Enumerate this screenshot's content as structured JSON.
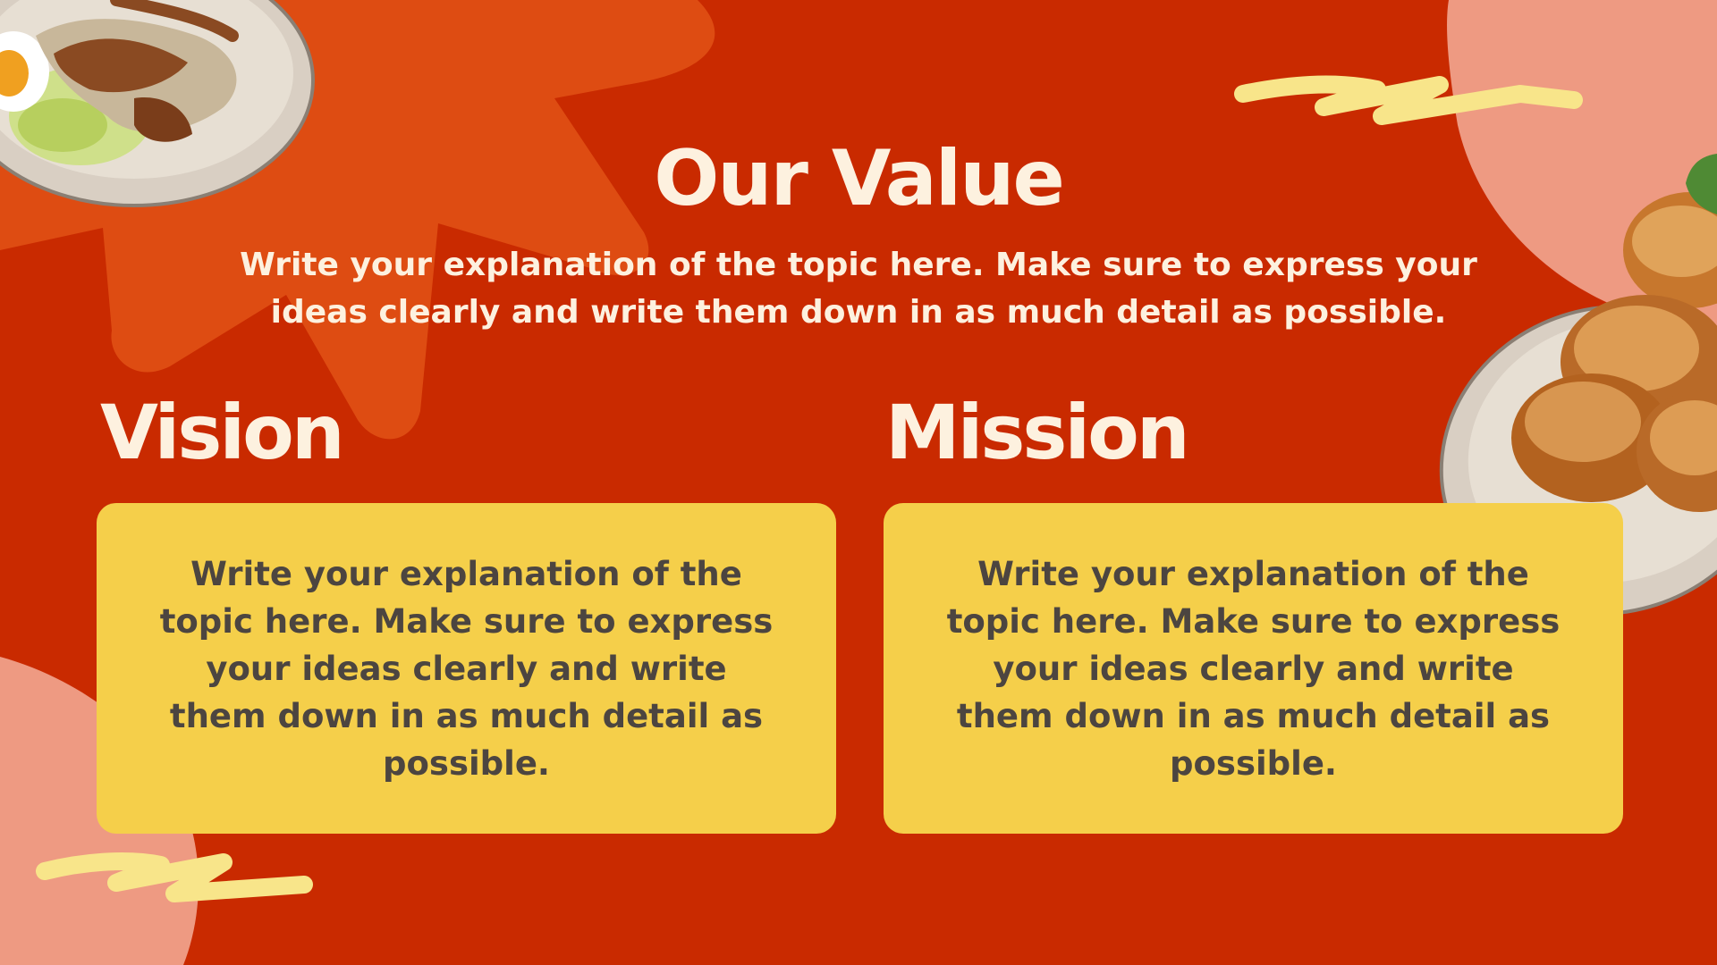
{
  "slide": {
    "title": "Our Value",
    "intro": "Write your explanation of the topic here. Make sure to express your ideas clearly and write them down in as much detail as possible."
  },
  "vision": {
    "heading": "Vision",
    "body": "Write your explanation of the topic here. Make sure to express your ideas clearly and write them down in as much detail as possible."
  },
  "mission": {
    "heading": "Mission",
    "body": "Write your explanation of the topic here. Make sure to express your ideas clearly and write them down in as much detail as possible."
  },
  "colors": {
    "background": "#c92a00",
    "starburst": "#de4c12",
    "blob": "#ee9a82",
    "card": "#f5cf4a",
    "heading_text": "#fdf1df",
    "card_text": "#4c4540",
    "squiggle": "#f8e58a"
  }
}
